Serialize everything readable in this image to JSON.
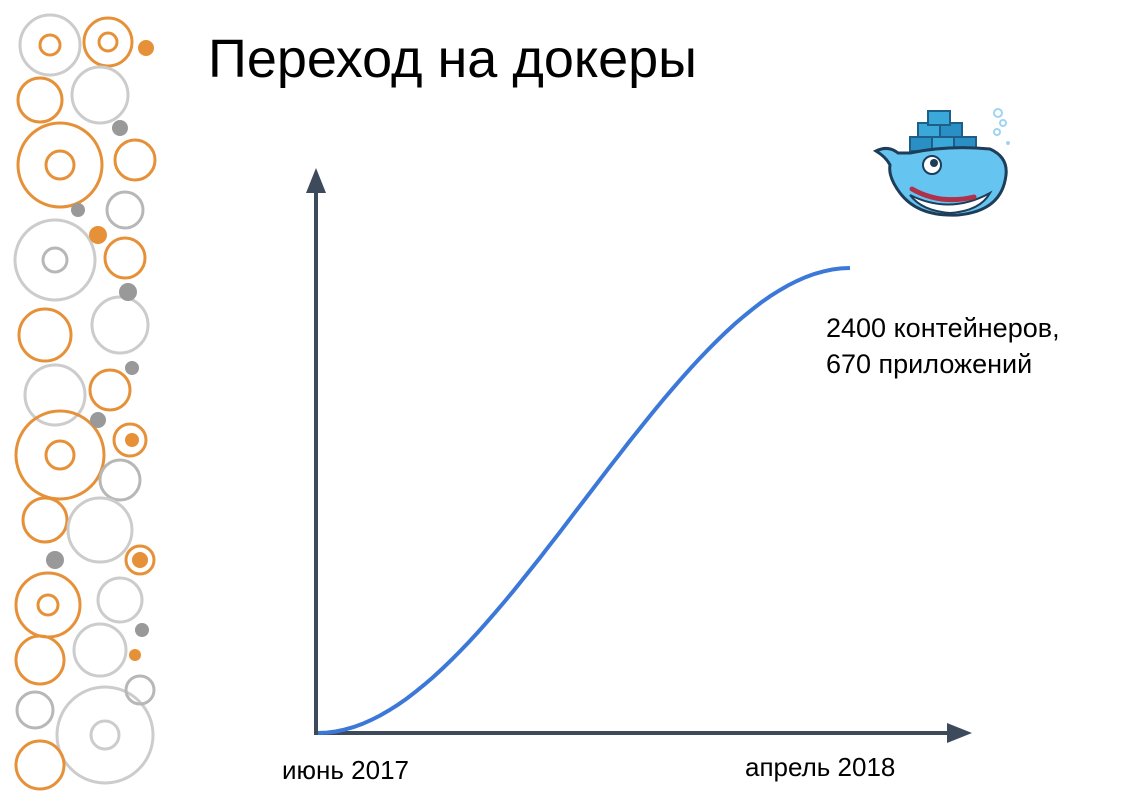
{
  "slide": {
    "title": "Переход на докеры"
  },
  "chart_data": {
    "type": "line",
    "title": "Переход на докеры",
    "x_tick_labels": [
      "июнь 2017",
      "апрель 2018"
    ],
    "x": [
      "июнь 2017",
      "апрель 2018"
    ],
    "series": [
      {
        "values": [
          0,
          2400
        ],
        "curve": "s-shaped growth"
      }
    ],
    "annotation": [
      "2400 контейнеров,",
      "670 приложений"
    ],
    "ylabel": "",
    "xlabel": "",
    "grid": false,
    "line_color": "#3c78d8",
    "axis_color": "#3d4a5c"
  },
  "colors": {
    "axis": "#3d4a5c",
    "line": "#3c78d8",
    "gear_orange": "#e69138",
    "gear_gray": "#b7b7b7"
  },
  "icons": {
    "decor": "gears-decoration",
    "logo": "docker-whale-logo"
  }
}
